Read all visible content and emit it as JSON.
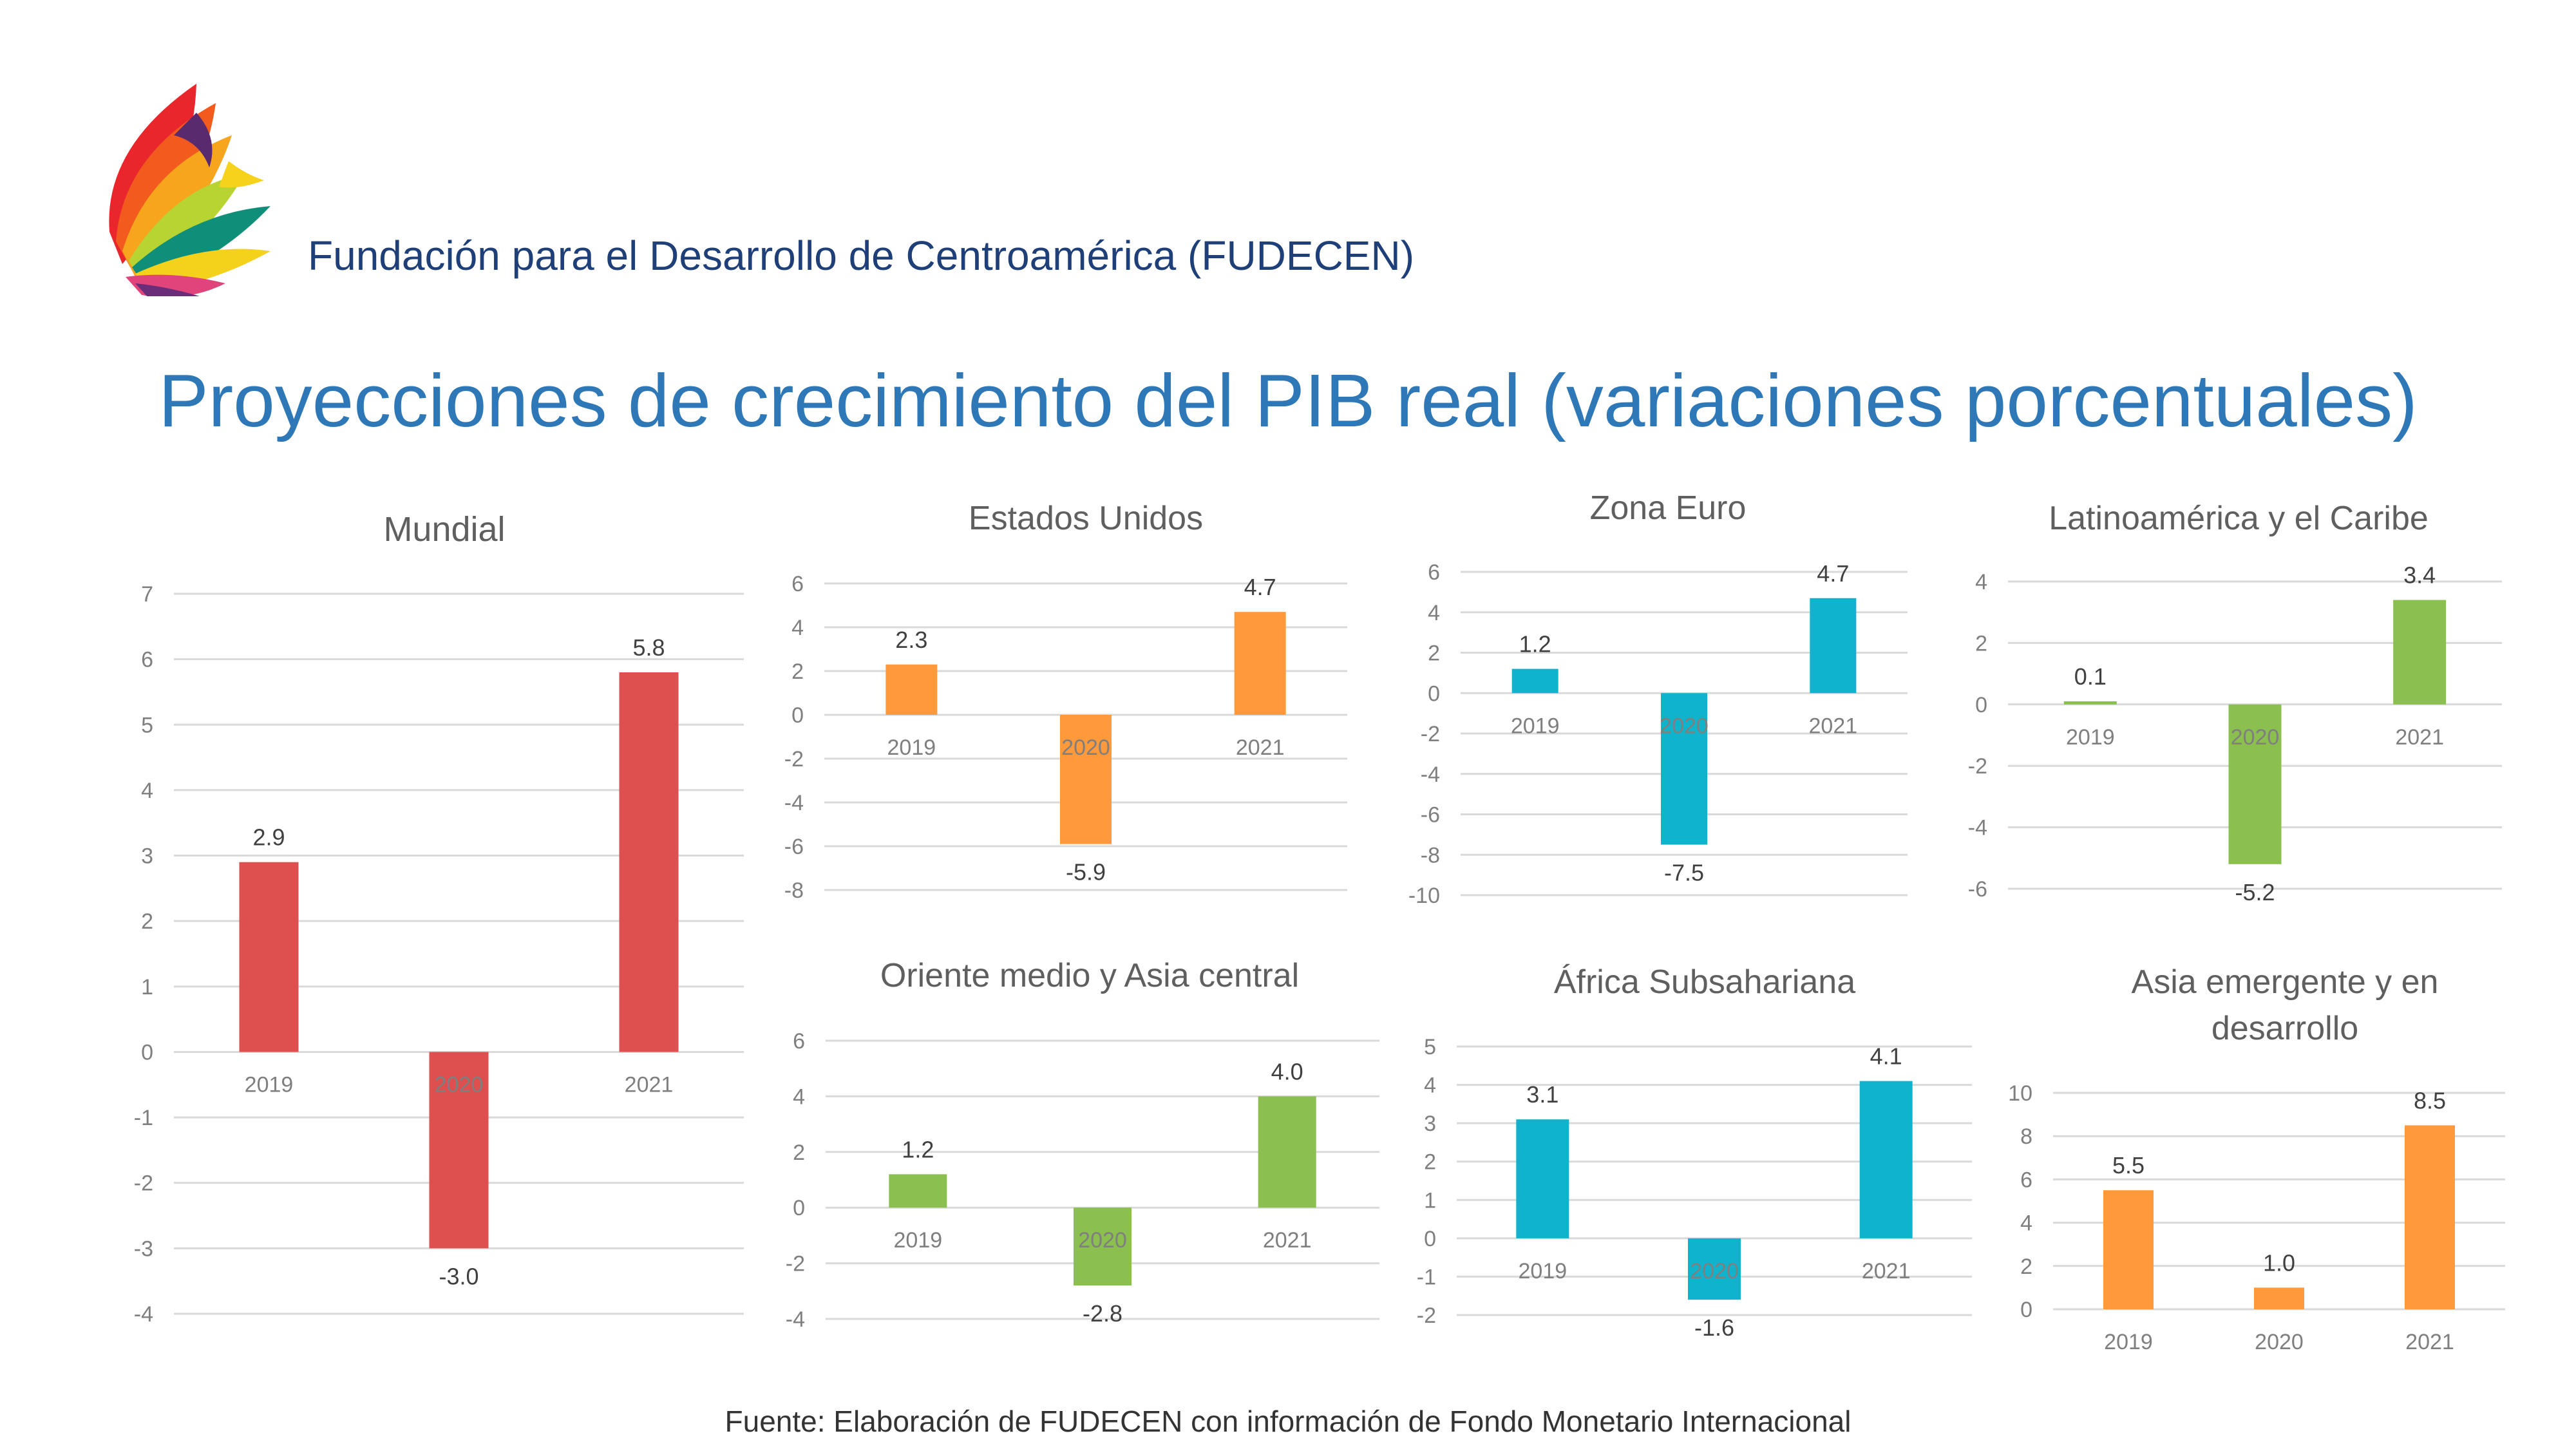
{
  "header": {
    "org_name": "Fundación para el Desarrollo de Centroamérica (FUDECEN)",
    "title": "Proyecciones de crecimiento del PIB real (variaciones porcentuales)",
    "source": "Fuente: Elaboración de FUDECEN con información de Fondo Monetario Internacional"
  },
  "logo": {
    "icon": "fudecen-petal-logo-icon"
  },
  "chart_data": [
    {
      "type": "bar",
      "title": "Mundial",
      "color": "#de4f4f",
      "categories": [
        "2019",
        "2020",
        "2021"
      ],
      "values": [
        2.9,
        -3.0,
        5.8
      ],
      "labels": [
        "2.9",
        "-3.0",
        "5.8"
      ],
      "ylim": [
        -4,
        7
      ],
      "yticks": [
        7,
        6,
        5,
        4,
        3,
        2,
        1,
        0,
        -1,
        -2,
        -3,
        -4
      ],
      "grid": true,
      "legend": "none"
    },
    {
      "type": "bar",
      "title": "Estados Unidos",
      "color": "#ff9a3c",
      "categories": [
        "2019",
        "2020",
        "2021"
      ],
      "values": [
        2.3,
        -5.9,
        4.7
      ],
      "labels": [
        "2.3",
        "-5.9",
        "4.7"
      ],
      "ylim": [
        -8,
        6
      ],
      "yticks": [
        6,
        4,
        2,
        0,
        -2,
        -4,
        -6,
        -8
      ],
      "grid": true,
      "legend": "none"
    },
    {
      "type": "bar",
      "title": "Zona Euro",
      "color": "#0fb3cc",
      "categories": [
        "2019",
        "2020",
        "2021"
      ],
      "values": [
        1.2,
        -7.5,
        4.7
      ],
      "labels": [
        "1.2",
        "-7.5",
        "4.7"
      ],
      "ylim": [
        -10,
        6
      ],
      "yticks": [
        6,
        4,
        2,
        0,
        -2,
        -4,
        -6,
        -8,
        -10
      ],
      "grid": true,
      "legend": "none"
    },
    {
      "type": "bar",
      "title": "Latinoamérica y el Caribe",
      "color": "#8bbf4f",
      "categories": [
        "2019",
        "2020",
        "2021"
      ],
      "values": [
        0.1,
        -5.2,
        3.4
      ],
      "labels": [
        "0.1",
        "-5.2",
        "3.4"
      ],
      "ylim": [
        -6,
        4
      ],
      "yticks": [
        4,
        2,
        0,
        -2,
        -4,
        -6
      ],
      "grid": true,
      "legend": "none"
    },
    {
      "type": "bar",
      "title": "Oriente medio y Asia central",
      "color": "#8bbf4f",
      "categories": [
        "2019",
        "2020",
        "2021"
      ],
      "values": [
        1.2,
        -2.8,
        4.0
      ],
      "labels": [
        "1.2",
        "-2.8",
        "4.0"
      ],
      "ylim": [
        -4,
        6
      ],
      "yticks": [
        6,
        4,
        2,
        0,
        -2,
        -4
      ],
      "grid": true,
      "legend": "none"
    },
    {
      "type": "bar",
      "title": "África Subsahariana",
      "color": "#0fb3cc",
      "categories": [
        "2019",
        "2020",
        "2021"
      ],
      "values": [
        3.1,
        -1.6,
        4.1
      ],
      "labels": [
        "3.1",
        "-1.6",
        "4.1"
      ],
      "ylim": [
        -2,
        5
      ],
      "yticks": [
        5,
        4,
        3,
        2,
        1,
        0,
        -1,
        -2
      ],
      "grid": true,
      "legend": "none"
    },
    {
      "type": "bar",
      "title": "Asia emergente y en desarrollo",
      "color": "#ff9a3c",
      "categories": [
        "2019",
        "2020",
        "2021"
      ],
      "values": [
        5.5,
        1.0,
        8.5
      ],
      "labels": [
        "5.5",
        "1.0",
        "8.5"
      ],
      "ylim": [
        0,
        10
      ],
      "yticks": [
        10,
        8,
        6,
        4,
        2,
        0
      ],
      "grid": true,
      "legend": "none"
    }
  ]
}
